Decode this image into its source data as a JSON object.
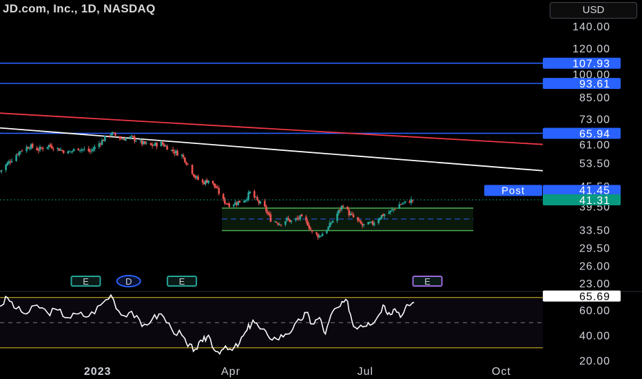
{
  "header": {
    "title": "JD.com, Inc., 1D, NASDAQ",
    "currency": "USD"
  },
  "colors": {
    "background": "#000000",
    "up": "#26a69a",
    "down": "#ef5350",
    "hline": "#2962ff",
    "trend_red": "#f23645",
    "trend_white": "#ffffff",
    "range_box": "#4caf50",
    "rsi_band": "#e6c229",
    "post_label": "#2962ff",
    "last_price": "#089981"
  },
  "chart_data": [
    {
      "type": "candlestick",
      "title": "JD.com, Inc., 1D, NASDAQ",
      "scale": "log",
      "y_ticks": [
        140.0,
        120.0,
        100.0,
        85.0,
        73.0,
        61.0,
        53.5,
        45.5,
        39.5,
        33.5,
        29.5,
        26.0,
        23.0
      ],
      "x_ticks": [
        {
          "label": "2023",
          "date": "2023-01-01"
        },
        {
          "label": "Apr",
          "date": "2023-04-01"
        },
        {
          "label": "Jul",
          "date": "2023-07-01"
        },
        {
          "label": "Oct",
          "date": "2023-10-01"
        }
      ],
      "x_range": [
        "2022-10-27",
        "2023-10-29"
      ],
      "close_path": [
        [
          "2022-10-27",
          50.5
        ],
        [
          "2022-11-04",
          55.0
        ],
        [
          "2022-11-10",
          58.5
        ],
        [
          "2022-11-16",
          60.3
        ],
        [
          "2022-11-22",
          58.8
        ],
        [
          "2022-11-29",
          60.6
        ],
        [
          "2022-12-05",
          59.2
        ],
        [
          "2022-12-12",
          57.6
        ],
        [
          "2022-12-19",
          59.4
        ],
        [
          "2022-12-27",
          58.0
        ],
        [
          "2023-01-03",
          62.0
        ],
        [
          "2023-01-10",
          66.0
        ],
        [
          "2023-01-17",
          63.5
        ],
        [
          "2023-01-24",
          64.0
        ],
        [
          "2023-01-31",
          61.5
        ],
        [
          "2023-02-06",
          60.5
        ],
        [
          "2023-02-13",
          61.5
        ],
        [
          "2023-02-20",
          58.5
        ],
        [
          "2023-02-27",
          56.5
        ],
        [
          "2023-03-03",
          53.0
        ],
        [
          "2023-03-08",
          48.5
        ],
        [
          "2023-03-13",
          46.5
        ],
        [
          "2023-03-17",
          47.5
        ],
        [
          "2023-03-22",
          45.0
        ],
        [
          "2023-03-27",
          41.0
        ],
        [
          "2023-03-31",
          40.0
        ],
        [
          "2023-04-05",
          40.5
        ],
        [
          "2023-04-11",
          41.5
        ],
        [
          "2023-04-14",
          43.5
        ],
        [
          "2023-04-19",
          41.0
        ],
        [
          "2023-04-24",
          39.0
        ],
        [
          "2023-04-28",
          36.0
        ],
        [
          "2023-05-04",
          35.0
        ],
        [
          "2023-05-09",
          36.0
        ],
        [
          "2023-05-12",
          35.5
        ],
        [
          "2023-05-18",
          36.5
        ],
        [
          "2023-05-23",
          35.0
        ],
        [
          "2023-05-26",
          32.8
        ],
        [
          "2023-05-31",
          32.0
        ],
        [
          "2023-06-06",
          34.0
        ],
        [
          "2023-06-12",
          37.5
        ],
        [
          "2023-06-16",
          40.0
        ],
        [
          "2023-06-20",
          37.5
        ],
        [
          "2023-06-26",
          35.5
        ],
        [
          "2023-06-29",
          34.5
        ],
        [
          "2023-07-06",
          35.0
        ],
        [
          "2023-07-12",
          37.0
        ],
        [
          "2023-07-18",
          38.0
        ],
        [
          "2023-07-24",
          40.0
        ],
        [
          "2023-07-28",
          40.5
        ],
        [
          "2023-08-02",
          41.3
        ]
      ],
      "last_price": 41.31,
      "post_market": {
        "label": "Post",
        "price": 41.45
      },
      "horizontal_lines": [
        107.93,
        93.61,
        65.94
      ],
      "trendlines": [
        {
          "color": "red",
          "from": [
            "2022-10-27",
            76.0
          ],
          "to": [
            "2023-10-29",
            61.0
          ]
        },
        {
          "color": "white",
          "from": [
            "2022-10-27",
            68.5
          ],
          "to": [
            "2023-10-29",
            50.7
          ]
        }
      ],
      "range_box": {
        "start": "2023-03-26",
        "end": "2023-09-12",
        "top": 39.0,
        "bottom": 33.3,
        "mid": 36.1
      },
      "event_markers": [
        {
          "label": "E",
          "date": "2022-12-24"
        },
        {
          "label": "D",
          "date": "2023-01-22"
        },
        {
          "label": "E",
          "date": "2023-02-27"
        },
        {
          "label": "E",
          "date": "2023-08-12"
        }
      ]
    },
    {
      "type": "line",
      "indicator": "RSI",
      "y_ticks": [
        60.0,
        40.0,
        20.0
      ],
      "ylim": [
        15,
        80
      ],
      "bands": [
        70,
        30
      ],
      "midline": 50,
      "current": 65.69,
      "values": [
        [
          "2022-10-27",
          63
        ],
        [
          "2022-11-01",
          70
        ],
        [
          "2022-11-07",
          61
        ],
        [
          "2022-11-14",
          57
        ],
        [
          "2022-11-21",
          64
        ],
        [
          "2022-11-28",
          58
        ],
        [
          "2022-12-05",
          60
        ],
        [
          "2022-12-12",
          54
        ],
        [
          "2022-12-19",
          57
        ],
        [
          "2022-12-26",
          55
        ],
        [
          "2023-01-03",
          64
        ],
        [
          "2023-01-10",
          72
        ],
        [
          "2023-01-17",
          56
        ],
        [
          "2023-01-24",
          59
        ],
        [
          "2023-01-31",
          47
        ],
        [
          "2023-02-07",
          53
        ],
        [
          "2023-02-13",
          57
        ],
        [
          "2023-02-20",
          45
        ],
        [
          "2023-02-27",
          40
        ],
        [
          "2023-03-03",
          31
        ],
        [
          "2023-03-08",
          29
        ],
        [
          "2023-03-13",
          35
        ],
        [
          "2023-03-17",
          40
        ],
        [
          "2023-03-22",
          27
        ],
        [
          "2023-03-27",
          29
        ],
        [
          "2023-04-02",
          28
        ],
        [
          "2023-04-07",
          34
        ],
        [
          "2023-04-12",
          44
        ],
        [
          "2023-04-16",
          52
        ],
        [
          "2023-04-21",
          45
        ],
        [
          "2023-04-26",
          40
        ],
        [
          "2023-05-02",
          37
        ],
        [
          "2023-05-08",
          41
        ],
        [
          "2023-05-13",
          45
        ],
        [
          "2023-05-18",
          52
        ],
        [
          "2023-05-22",
          58
        ],
        [
          "2023-05-26",
          49
        ],
        [
          "2023-05-31",
          54
        ],
        [
          "2023-06-04",
          41
        ],
        [
          "2023-06-09",
          59
        ],
        [
          "2023-06-14",
          63
        ],
        [
          "2023-06-19",
          67
        ],
        [
          "2023-06-23",
          47
        ],
        [
          "2023-06-28",
          48
        ],
        [
          "2023-07-03",
          50
        ],
        [
          "2023-07-08",
          52
        ],
        [
          "2023-07-13",
          64
        ],
        [
          "2023-07-17",
          58
        ],
        [
          "2023-07-21",
          61
        ],
        [
          "2023-07-26",
          56
        ],
        [
          "2023-07-30",
          64
        ],
        [
          "2023-08-03",
          66
        ]
      ]
    }
  ]
}
